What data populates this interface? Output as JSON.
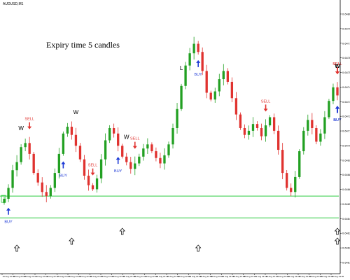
{
  "window": {
    "symbol_title": "AUDUSD,M1"
  },
  "overlay": {
    "expiry_text": "Expiry time 5 candles"
  },
  "chart_data": {
    "type": "candlestick",
    "symbol": "AUDUSD",
    "timeframe": "M1",
    "colors": {
      "bull": "#22a022",
      "bear": "#e0322f",
      "support_line": "#2ecc40",
      "sell_label": "#e0322f",
      "buy_label": "#1f3bd6",
      "text": "#000000",
      "background": "#ffffff",
      "axis": "#000000"
    },
    "y_ticks": [
      "0.64801",
      "0.64790",
      "0.64779",
      "0.64768",
      "0.64757",
      "0.64746",
      "0.64735",
      "0.64724",
      "0.64713",
      "0.64702",
      "0.64691",
      "0.64680",
      "0.64669",
      "0.64658",
      "0.64647",
      "0.64636",
      "0.64625",
      "0.64614"
    ],
    "x_ticks": [
      "19 Aug 22:05",
      "19 Aug 22:08",
      "19 Aug 22:11",
      "19 Aug 22:14",
      "19 Aug 22:17",
      "19 Aug 22:20",
      "19 Aug 22:23",
      "19 Aug 22:26",
      "19 Aug 22:29",
      "19 Aug 22:32",
      "19 Aug 22:35",
      "19 Aug 22:38",
      "19 Aug 22:41",
      "19 Aug 22:44",
      "19 Aug 22:47",
      "19 Aug 22:50",
      "19 Aug 22:53",
      "19 Aug 22:56",
      "19 Aug 22:59",
      "19 Aug 23:02",
      "19 Aug 23:05",
      "19 Aug 23:08",
      "19 Aug 23:11",
      "19 Aug 23:14",
      "19 Aug 23:17",
      "19 Aug 23:20",
      "19 Aug 23:23",
      "19 Aug 23:26",
      "19 Aug 23:29",
      "19 Aug 23:32",
      "19 Aug 23:35"
    ],
    "y_range": [
      0.64612,
      0.64803
    ],
    "price_path": [
      0.64664,
      0.64672,
      0.64685,
      0.64691,
      0.64702,
      0.64705,
      0.64697,
      0.64683,
      0.64676,
      0.64669,
      0.64666,
      0.64672,
      0.64683,
      0.64697,
      0.64712,
      0.64717,
      0.64711,
      0.64703,
      0.64693,
      0.64681,
      0.64674,
      0.64671,
      0.64679,
      0.64693,
      0.64707,
      0.64716,
      0.64712,
      0.64703,
      0.64695,
      0.64691,
      0.64686,
      0.6469,
      0.64695,
      0.64701,
      0.64704,
      0.64699,
      0.64694,
      0.6469,
      0.64696,
      0.64704,
      0.64716,
      0.6473,
      0.64747,
      0.64762,
      0.64771,
      0.64778,
      0.64772,
      0.64758,
      0.64742,
      0.64737,
      0.64743,
      0.64752,
      0.64758,
      0.6475,
      0.64738,
      0.64726,
      0.64716,
      0.64711,
      0.64714,
      0.64719,
      0.64716,
      0.6471,
      0.64718,
      0.64724,
      0.64714,
      0.647,
      0.64683,
      0.64672,
      0.64669,
      0.6468,
      0.64699,
      0.64714,
      0.64722,
      0.64716,
      0.64706,
      0.64712,
      0.64724,
      0.64736,
      0.64746,
      0.6474
    ],
    "support_levels": [
      0.64666,
      0.6465
    ],
    "signals": [
      {
        "label": "W",
        "type": "w",
        "candle": 4
      },
      {
        "label": "SELL",
        "type": "sell",
        "candle": 6
      },
      {
        "label": "BUY",
        "type": "buy",
        "candle": 1
      },
      {
        "label": "W",
        "type": "w",
        "candle": 17
      },
      {
        "label": "SELL",
        "type": "sell",
        "candle": 21
      },
      {
        "label": "BUY",
        "type": "buy",
        "candle": 14
      },
      {
        "label": "W",
        "type": "w",
        "candle": 29
      },
      {
        "label": "SELL",
        "type": "sell",
        "candle": 31
      },
      {
        "label": "BUY",
        "type": "buy",
        "candle": 27
      },
      {
        "label": "L",
        "type": "l",
        "candle": 42
      },
      {
        "label": "BUY",
        "type": "buy",
        "candle": 46
      },
      {
        "label": "SELL",
        "type": "sell",
        "candle": 62
      },
      {
        "label": "SELL",
        "type": "sell",
        "candle": 82
      },
      {
        "label": "L",
        "type": "l",
        "candle": 83
      },
      {
        "label": "BUY",
        "type": "buy",
        "candle": 82
      },
      {
        "label": "BUY",
        "type": "buy",
        "candle": 88
      },
      {
        "label": "W",
        "type": "w",
        "candle": 89
      },
      {
        "label": "SELL",
        "type": "sell",
        "candle": 96
      },
      {
        "label": "BUY",
        "type": "buy",
        "candle": 97
      },
      {
        "label": "W",
        "type": "w",
        "candle": 98
      }
    ],
    "hollow_arrows": [
      3,
      16,
      28,
      46,
      82,
      88
    ]
  }
}
